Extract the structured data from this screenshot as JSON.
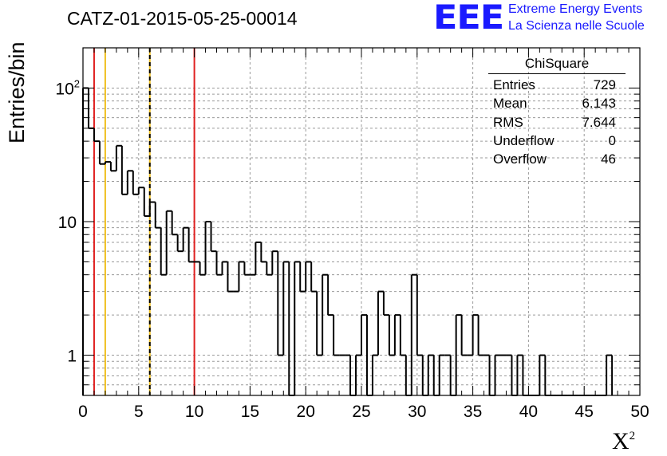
{
  "header": {
    "run_title": "CATZ-01-2015-05-25-00014",
    "logo_text": "EEE",
    "logo_line1": "Extreme Energy Events",
    "logo_line2": "La Scienza nelle Scuole",
    "brand_color": "#1a1aff"
  },
  "stats_box": {
    "title": "ChiSquare",
    "rows": [
      {
        "label": "Entries",
        "value": "729"
      },
      {
        "label": "Mean",
        "value": "6.143"
      },
      {
        "label": "RMS",
        "value": "7.644"
      },
      {
        "label": "Underflow",
        "value": "0"
      },
      {
        "label": "Overflow",
        "value": "46"
      }
    ]
  },
  "chart_data": {
    "type": "histogram",
    "ylabel": "Entries/bin",
    "xlabel": "X",
    "xlabel_superscript": "2",
    "xlim": [
      0,
      50
    ],
    "ylim": [
      0.5,
      200
    ],
    "yscale": "log",
    "grid": true,
    "bin_width": 0.5,
    "xticks": [
      0,
      5,
      10,
      15,
      20,
      25,
      30,
      35,
      40,
      45,
      50
    ],
    "xtick_labels": [
      "0",
      "5",
      "10",
      "15",
      "20",
      "25",
      "30",
      "35",
      "40",
      "45",
      "50"
    ],
    "yticks": [
      1,
      10,
      100
    ],
    "ytick_labels": [
      "1",
      "10",
      "10²"
    ],
    "values": [
      100,
      50,
      40,
      27,
      28,
      24,
      37,
      16,
      24,
      16,
      18,
      11,
      14,
      9,
      4,
      12,
      8,
      6,
      9,
      5,
      5,
      4,
      10,
      6,
      4,
      5,
      3,
      3,
      5,
      4,
      4,
      7,
      5,
      4,
      6,
      1,
      5,
      0,
      5,
      3,
      5,
      3,
      1,
      4,
      2,
      1,
      1,
      1,
      0,
      1,
      2,
      0,
      1,
      3,
      2,
      1,
      2,
      1,
      0,
      4,
      1,
      0,
      1,
      0,
      1,
      1,
      0,
      2,
      1,
      1,
      2,
      1,
      1,
      0,
      1,
      1,
      1,
      0,
      1,
      0,
      0,
      0,
      1,
      0,
      0,
      0,
      0,
      0,
      0,
      0,
      0,
      0,
      0,
      0,
      1
    ],
    "vertical_lines": [
      {
        "x": 1,
        "color": "#e02020",
        "style": "solid"
      },
      {
        "x": 2,
        "color": "#f0c020",
        "style": "solid"
      },
      {
        "x": 6,
        "color": "#f0c020",
        "style": "solid"
      },
      {
        "x": 6,
        "color": "#000000",
        "style": "dashed"
      },
      {
        "x": 10,
        "color": "#e02020",
        "style": "solid"
      }
    ]
  }
}
